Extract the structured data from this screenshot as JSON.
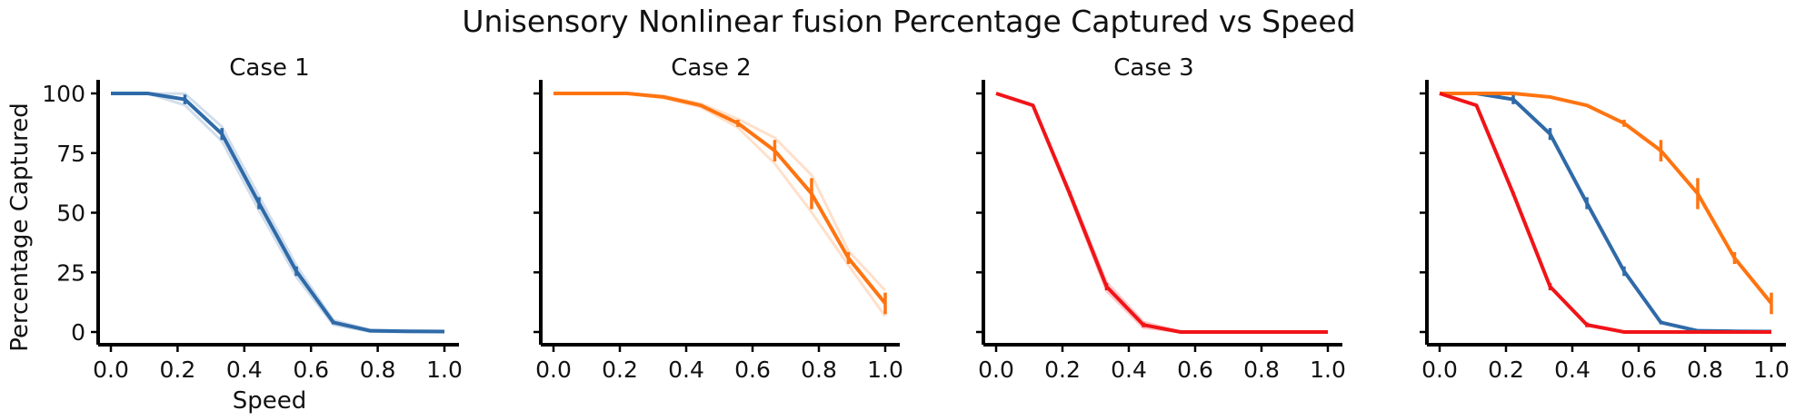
{
  "figure": {
    "title": "Unisensory Nonlinear fusion Percentage Captured vs Speed"
  },
  "colors": {
    "case1": "#2f6aa8",
    "case2": "#ff7410",
    "case3": "#f01418",
    "axis": "#000000"
  },
  "chart_data": [
    {
      "type": "line",
      "title": "Case 1",
      "xlabel": "Speed",
      "ylabel": "Percentage Captured",
      "xlim": [
        0,
        1
      ],
      "ylim": [
        0,
        100
      ],
      "xticks": [
        "0.0",
        "0.2",
        "0.4",
        "0.6",
        "0.8",
        "1.0"
      ],
      "yticks": [
        "0",
        "25",
        "50",
        "75",
        "100"
      ],
      "grid": false,
      "x": [
        0,
        0.111,
        0.222,
        0.333,
        0.444,
        0.556,
        0.667,
        0.778,
        0.889,
        1.0
      ],
      "series": [
        {
          "color_key": "case1",
          "values": [
            100,
            100,
            97.5,
            83,
            54,
            25.5,
            4,
            0.5,
            0.3,
            0.2
          ],
          "err": [
            0,
            0,
            2,
            2.5,
            2.5,
            2,
            0.8,
            0.3,
            0.2,
            0.2
          ]
        }
      ]
    },
    {
      "type": "line",
      "title": "Case 2",
      "xlabel": "",
      "ylabel": "",
      "xlim": [
        0,
        1
      ],
      "ylim": [
        0,
        100
      ],
      "xticks": [
        "0.0",
        "0.2",
        "0.4",
        "0.6",
        "0.8",
        "1.0"
      ],
      "yticks": [
        "",
        "",
        "",
        "",
        ""
      ],
      "grid": false,
      "x": [
        0,
        0.111,
        0.222,
        0.333,
        0.444,
        0.556,
        0.667,
        0.778,
        0.889,
        1.0
      ],
      "series": [
        {
          "color_key": "case2",
          "values": [
            100,
            100,
            100,
            98.5,
            95,
            87.5,
            76,
            58,
            31,
            12
          ],
          "err": [
            0,
            0,
            0,
            0.4,
            0.6,
            1.5,
            4.5,
            6.5,
            2.5,
            4.5
          ]
        }
      ]
    },
    {
      "type": "line",
      "title": "Case 3",
      "xlabel": "",
      "ylabel": "",
      "xlim": [
        0,
        1
      ],
      "ylim": [
        0,
        100
      ],
      "xticks": [
        "0.0",
        "0.2",
        "0.4",
        "0.6",
        "0.8",
        "1.0"
      ],
      "yticks": [
        "",
        "",
        "",
        "",
        ""
      ],
      "grid": false,
      "x": [
        0,
        0.111,
        0.222,
        0.333,
        0.444,
        0.556,
        0.667,
        0.778,
        0.889,
        1.0
      ],
      "series": [
        {
          "color_key": "case3",
          "values": [
            100,
            95,
            58,
            19,
            3,
            0,
            0,
            0,
            0,
            0
          ],
          "err": [
            0,
            0,
            0.8,
            1.5,
            1,
            0,
            0,
            0,
            0,
            0
          ]
        }
      ]
    },
    {
      "type": "line",
      "title": "",
      "xlabel": "",
      "ylabel": "",
      "xlim": [
        0,
        1
      ],
      "ylim": [
        0,
        100
      ],
      "xticks": [
        "0.0",
        "0.2",
        "0.4",
        "0.6",
        "0.8",
        "1.0"
      ],
      "yticks": [
        "",
        "",
        "",
        "",
        ""
      ],
      "grid": false,
      "x": [
        0,
        0.111,
        0.222,
        0.333,
        0.444,
        0.556,
        0.667,
        0.778,
        0.889,
        1.0
      ],
      "series": [
        {
          "color_key": "case1",
          "values": [
            100,
            100,
            97.5,
            83,
            54,
            25.5,
            4,
            0.5,
            0.3,
            0.2
          ],
          "err": [
            0,
            0,
            2,
            2.5,
            2.5,
            2,
            0.8,
            0.3,
            0.2,
            0.2
          ]
        },
        {
          "color_key": "case2",
          "values": [
            100,
            100,
            100,
            98.5,
            95,
            87.5,
            76,
            58,
            31,
            12
          ],
          "err": [
            0,
            0,
            0,
            0.4,
            0.6,
            1.5,
            4.5,
            6.5,
            2.5,
            4.5
          ]
        },
        {
          "color_key": "case3",
          "values": [
            100,
            95,
            58,
            19,
            3,
            0,
            0,
            0,
            0,
            0
          ],
          "err": [
            0,
            0,
            0.8,
            1.5,
            1,
            0,
            0,
            0,
            0,
            0
          ]
        }
      ]
    }
  ]
}
